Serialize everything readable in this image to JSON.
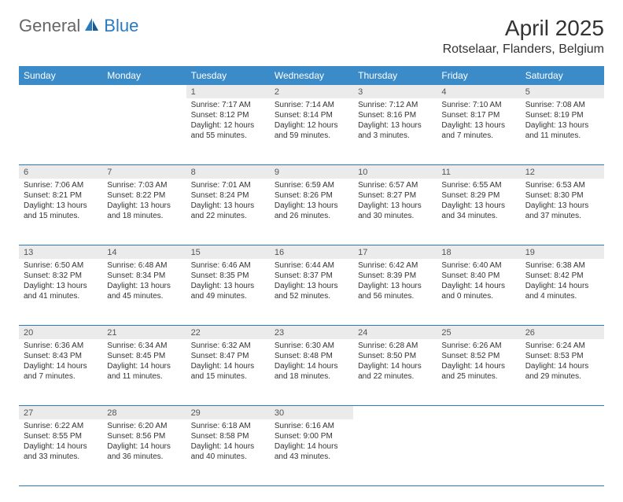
{
  "logo": {
    "general": "General",
    "blue": "Blue"
  },
  "header": {
    "month_title": "April 2025",
    "location": "Rotselaar, Flanders, Belgium"
  },
  "colors": {
    "header_bg": "#3b8bc9",
    "accent": "#2a7ac0",
    "text": "#333333",
    "muted": "#666666",
    "daynum_bg": "#ebebeb",
    "page_bg": "#ffffff"
  },
  "day_names": [
    "Sunday",
    "Monday",
    "Tuesday",
    "Wednesday",
    "Thursday",
    "Friday",
    "Saturday"
  ],
  "weeks": [
    [
      {
        "num": "",
        "sunrise": "",
        "sunset": "",
        "daylight": ""
      },
      {
        "num": "",
        "sunrise": "",
        "sunset": "",
        "daylight": ""
      },
      {
        "num": "1",
        "sunrise": "Sunrise: 7:17 AM",
        "sunset": "Sunset: 8:12 PM",
        "daylight": "Daylight: 12 hours and 55 minutes."
      },
      {
        "num": "2",
        "sunrise": "Sunrise: 7:14 AM",
        "sunset": "Sunset: 8:14 PM",
        "daylight": "Daylight: 12 hours and 59 minutes."
      },
      {
        "num": "3",
        "sunrise": "Sunrise: 7:12 AM",
        "sunset": "Sunset: 8:16 PM",
        "daylight": "Daylight: 13 hours and 3 minutes."
      },
      {
        "num": "4",
        "sunrise": "Sunrise: 7:10 AM",
        "sunset": "Sunset: 8:17 PM",
        "daylight": "Daylight: 13 hours and 7 minutes."
      },
      {
        "num": "5",
        "sunrise": "Sunrise: 7:08 AM",
        "sunset": "Sunset: 8:19 PM",
        "daylight": "Daylight: 13 hours and 11 minutes."
      }
    ],
    [
      {
        "num": "6",
        "sunrise": "Sunrise: 7:06 AM",
        "sunset": "Sunset: 8:21 PM",
        "daylight": "Daylight: 13 hours and 15 minutes."
      },
      {
        "num": "7",
        "sunrise": "Sunrise: 7:03 AM",
        "sunset": "Sunset: 8:22 PM",
        "daylight": "Daylight: 13 hours and 18 minutes."
      },
      {
        "num": "8",
        "sunrise": "Sunrise: 7:01 AM",
        "sunset": "Sunset: 8:24 PM",
        "daylight": "Daylight: 13 hours and 22 minutes."
      },
      {
        "num": "9",
        "sunrise": "Sunrise: 6:59 AM",
        "sunset": "Sunset: 8:26 PM",
        "daylight": "Daylight: 13 hours and 26 minutes."
      },
      {
        "num": "10",
        "sunrise": "Sunrise: 6:57 AM",
        "sunset": "Sunset: 8:27 PM",
        "daylight": "Daylight: 13 hours and 30 minutes."
      },
      {
        "num": "11",
        "sunrise": "Sunrise: 6:55 AM",
        "sunset": "Sunset: 8:29 PM",
        "daylight": "Daylight: 13 hours and 34 minutes."
      },
      {
        "num": "12",
        "sunrise": "Sunrise: 6:53 AM",
        "sunset": "Sunset: 8:30 PM",
        "daylight": "Daylight: 13 hours and 37 minutes."
      }
    ],
    [
      {
        "num": "13",
        "sunrise": "Sunrise: 6:50 AM",
        "sunset": "Sunset: 8:32 PM",
        "daylight": "Daylight: 13 hours and 41 minutes."
      },
      {
        "num": "14",
        "sunrise": "Sunrise: 6:48 AM",
        "sunset": "Sunset: 8:34 PM",
        "daylight": "Daylight: 13 hours and 45 minutes."
      },
      {
        "num": "15",
        "sunrise": "Sunrise: 6:46 AM",
        "sunset": "Sunset: 8:35 PM",
        "daylight": "Daylight: 13 hours and 49 minutes."
      },
      {
        "num": "16",
        "sunrise": "Sunrise: 6:44 AM",
        "sunset": "Sunset: 8:37 PM",
        "daylight": "Daylight: 13 hours and 52 minutes."
      },
      {
        "num": "17",
        "sunrise": "Sunrise: 6:42 AM",
        "sunset": "Sunset: 8:39 PM",
        "daylight": "Daylight: 13 hours and 56 minutes."
      },
      {
        "num": "18",
        "sunrise": "Sunrise: 6:40 AM",
        "sunset": "Sunset: 8:40 PM",
        "daylight": "Daylight: 14 hours and 0 minutes."
      },
      {
        "num": "19",
        "sunrise": "Sunrise: 6:38 AM",
        "sunset": "Sunset: 8:42 PM",
        "daylight": "Daylight: 14 hours and 4 minutes."
      }
    ],
    [
      {
        "num": "20",
        "sunrise": "Sunrise: 6:36 AM",
        "sunset": "Sunset: 8:43 PM",
        "daylight": "Daylight: 14 hours and 7 minutes."
      },
      {
        "num": "21",
        "sunrise": "Sunrise: 6:34 AM",
        "sunset": "Sunset: 8:45 PM",
        "daylight": "Daylight: 14 hours and 11 minutes."
      },
      {
        "num": "22",
        "sunrise": "Sunrise: 6:32 AM",
        "sunset": "Sunset: 8:47 PM",
        "daylight": "Daylight: 14 hours and 15 minutes."
      },
      {
        "num": "23",
        "sunrise": "Sunrise: 6:30 AM",
        "sunset": "Sunset: 8:48 PM",
        "daylight": "Daylight: 14 hours and 18 minutes."
      },
      {
        "num": "24",
        "sunrise": "Sunrise: 6:28 AM",
        "sunset": "Sunset: 8:50 PM",
        "daylight": "Daylight: 14 hours and 22 minutes."
      },
      {
        "num": "25",
        "sunrise": "Sunrise: 6:26 AM",
        "sunset": "Sunset: 8:52 PM",
        "daylight": "Daylight: 14 hours and 25 minutes."
      },
      {
        "num": "26",
        "sunrise": "Sunrise: 6:24 AM",
        "sunset": "Sunset: 8:53 PM",
        "daylight": "Daylight: 14 hours and 29 minutes."
      }
    ],
    [
      {
        "num": "27",
        "sunrise": "Sunrise: 6:22 AM",
        "sunset": "Sunset: 8:55 PM",
        "daylight": "Daylight: 14 hours and 33 minutes."
      },
      {
        "num": "28",
        "sunrise": "Sunrise: 6:20 AM",
        "sunset": "Sunset: 8:56 PM",
        "daylight": "Daylight: 14 hours and 36 minutes."
      },
      {
        "num": "29",
        "sunrise": "Sunrise: 6:18 AM",
        "sunset": "Sunset: 8:58 PM",
        "daylight": "Daylight: 14 hours and 40 minutes."
      },
      {
        "num": "30",
        "sunrise": "Sunrise: 6:16 AM",
        "sunset": "Sunset: 9:00 PM",
        "daylight": "Daylight: 14 hours and 43 minutes."
      },
      {
        "num": "",
        "sunrise": "",
        "sunset": "",
        "daylight": ""
      },
      {
        "num": "",
        "sunrise": "",
        "sunset": "",
        "daylight": ""
      },
      {
        "num": "",
        "sunrise": "",
        "sunset": "",
        "daylight": ""
      }
    ]
  ]
}
